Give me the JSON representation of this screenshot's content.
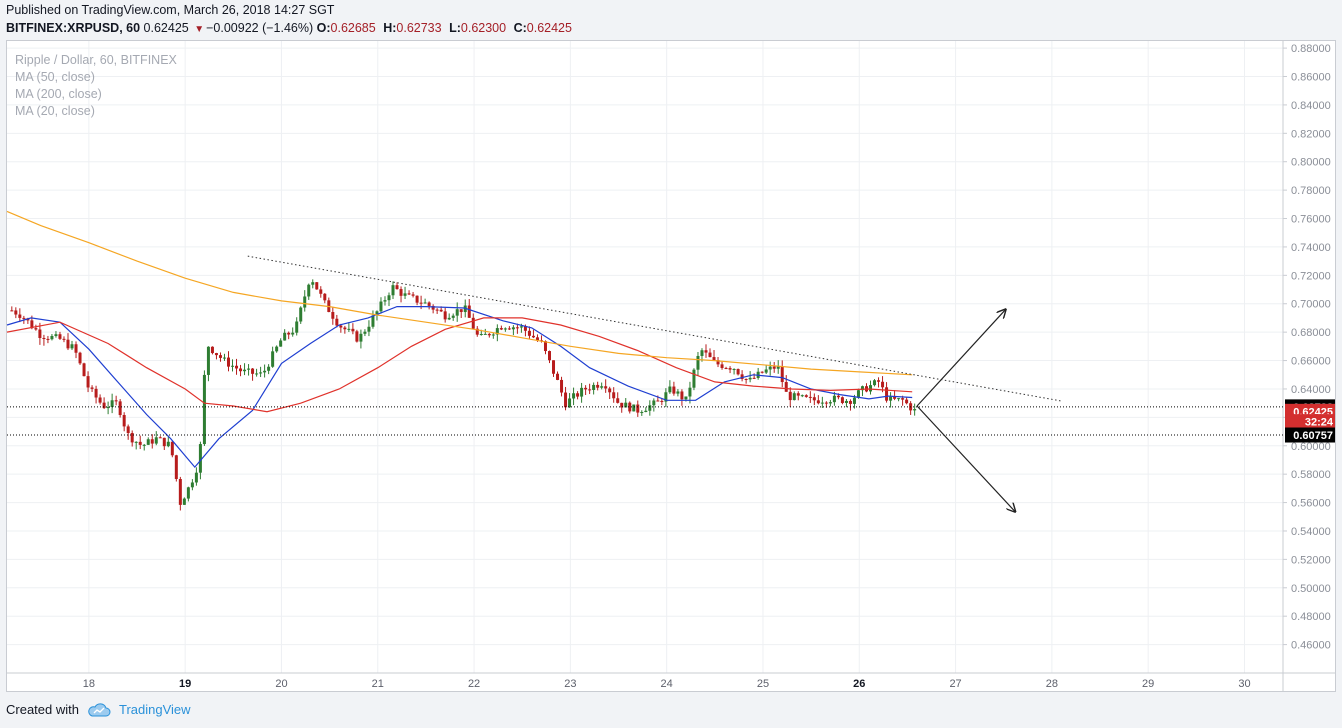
{
  "header": {
    "published": "Published on TradingView.com, March 26, 2018 14:27 SGT",
    "symbol": "BITFINEX:XRPUSD, 60",
    "last": "0.62425",
    "change": "−0.00922 (−1.46%)",
    "o_label": "O:",
    "o_value": "0.62685",
    "h_label": "H:",
    "h_value": "0.62733",
    "l_label": "L:",
    "l_value": "0.62300",
    "c_label": "C:",
    "c_value": "0.62425"
  },
  "legend": {
    "title": "Ripple / Dollar, 60, BITFINEX",
    "ma50": "MA (50, close)",
    "ma200": "MA (200, close)",
    "ma20": "MA (20, close)"
  },
  "footer": {
    "created": "Created with",
    "brand": "TradingView"
  },
  "colors": {
    "up": "#2e7d32",
    "down": "#b71c1c",
    "ma20": "#1f3fd1",
    "ma50": "#e0322b",
    "ma200": "#f5a623",
    "grid": "#eef0f3",
    "badge_black": "#000000",
    "badge_red": "#d32f2f"
  },
  "chart_data": {
    "type": "candlestick",
    "x_unit": "days (March 2018)",
    "xlim": [
      17.15,
      30.4
    ],
    "ylim": [
      0.44,
      0.885
    ],
    "y_ticks": [
      0.46,
      0.48,
      0.5,
      0.52,
      0.54,
      0.56,
      0.58,
      0.6,
      0.62,
      0.64,
      0.66,
      0.68,
      0.7,
      0.72,
      0.74,
      0.76,
      0.78,
      0.8,
      0.82,
      0.84,
      0.86,
      0.88
    ],
    "x_ticks": [
      {
        "x": 18,
        "label": "18",
        "bold": false
      },
      {
        "x": 19,
        "label": "19",
        "bold": true
      },
      {
        "x": 20,
        "label": "20",
        "bold": false
      },
      {
        "x": 21,
        "label": "21",
        "bold": false
      },
      {
        "x": 22,
        "label": "22",
        "bold": false
      },
      {
        "x": 23,
        "label": "23",
        "bold": false
      },
      {
        "x": 24,
        "label": "24",
        "bold": false
      },
      {
        "x": 25,
        "label": "25",
        "bold": false
      },
      {
        "x": 26,
        "label": "26",
        "bold": true
      },
      {
        "x": 27,
        "label": "27",
        "bold": false
      },
      {
        "x": 28,
        "label": "28",
        "bold": false
      },
      {
        "x": 29,
        "label": "29",
        "bold": false
      },
      {
        "x": 30,
        "label": "30",
        "bold": false
      }
    ],
    "price_path": [
      [
        17.15,
        0.697
      ],
      [
        17.3,
        0.692
      ],
      [
        17.5,
        0.678
      ],
      [
        17.7,
        0.675
      ],
      [
        17.85,
        0.668
      ],
      [
        18.0,
        0.64
      ],
      [
        18.15,
        0.628
      ],
      [
        18.3,
        0.63
      ],
      [
        18.4,
        0.608
      ],
      [
        18.55,
        0.6
      ],
      [
        18.7,
        0.605
      ],
      [
        18.85,
        0.6
      ],
      [
        18.95,
        0.56
      ],
      [
        19.05,
        0.572
      ],
      [
        19.15,
        0.59
      ],
      [
        19.22,
        0.672
      ],
      [
        19.4,
        0.66
      ],
      [
        19.6,
        0.652
      ],
      [
        19.8,
        0.65
      ],
      [
        20.0,
        0.675
      ],
      [
        20.15,
        0.683
      ],
      [
        20.3,
        0.72
      ],
      [
        20.45,
        0.7
      ],
      [
        20.6,
        0.685
      ],
      [
        20.8,
        0.675
      ],
      [
        21.0,
        0.695
      ],
      [
        21.15,
        0.712
      ],
      [
        21.3,
        0.705
      ],
      [
        21.5,
        0.7
      ],
      [
        21.7,
        0.692
      ],
      [
        21.9,
        0.697
      ],
      [
        22.05,
        0.675
      ],
      [
        22.3,
        0.685
      ],
      [
        22.5,
        0.683
      ],
      [
        22.7,
        0.672
      ],
      [
        22.85,
        0.648
      ],
      [
        22.95,
        0.63
      ],
      [
        23.15,
        0.64
      ],
      [
        23.35,
        0.645
      ],
      [
        23.5,
        0.63
      ],
      [
        23.7,
        0.625
      ],
      [
        23.9,
        0.63
      ],
      [
        24.05,
        0.64
      ],
      [
        24.2,
        0.632
      ],
      [
        24.35,
        0.668
      ],
      [
        24.5,
        0.658
      ],
      [
        24.7,
        0.655
      ],
      [
        24.85,
        0.645
      ],
      [
        25.0,
        0.652
      ],
      [
        25.15,
        0.656
      ],
      [
        25.25,
        0.635
      ],
      [
        25.5,
        0.632
      ],
      [
        25.7,
        0.633
      ],
      [
        25.9,
        0.632
      ],
      [
        26.05,
        0.64
      ],
      [
        26.2,
        0.645
      ],
      [
        26.3,
        0.632
      ],
      [
        26.45,
        0.632
      ],
      [
        26.58,
        0.6243
      ]
    ],
    "series": [
      {
        "name": "MA (20, close)",
        "color": "#1f3fd1",
        "points": [
          [
            17.15,
            0.685
          ],
          [
            17.4,
            0.69
          ],
          [
            17.7,
            0.687
          ],
          [
            18.0,
            0.668
          ],
          [
            18.3,
            0.645
          ],
          [
            18.6,
            0.622
          ],
          [
            18.85,
            0.605
          ],
          [
            19.1,
            0.585
          ],
          [
            19.35,
            0.605
          ],
          [
            19.7,
            0.625
          ],
          [
            20.0,
            0.658
          ],
          [
            20.3,
            0.672
          ],
          [
            20.6,
            0.685
          ],
          [
            20.9,
            0.69
          ],
          [
            21.2,
            0.698
          ],
          [
            21.5,
            0.698
          ],
          [
            21.9,
            0.697
          ],
          [
            22.3,
            0.688
          ],
          [
            22.6,
            0.683
          ],
          [
            22.9,
            0.67
          ],
          [
            23.2,
            0.655
          ],
          [
            23.6,
            0.642
          ],
          [
            24.0,
            0.632
          ],
          [
            24.3,
            0.632
          ],
          [
            24.6,
            0.645
          ],
          [
            24.9,
            0.65
          ],
          [
            25.2,
            0.648
          ],
          [
            25.5,
            0.64
          ],
          [
            25.8,
            0.636
          ],
          [
            26.1,
            0.633
          ],
          [
            26.3,
            0.635
          ],
          [
            26.55,
            0.634
          ]
        ]
      },
      {
        "name": "MA (50, close)",
        "color": "#e0322b",
        "points": [
          [
            17.15,
            0.68
          ],
          [
            17.7,
            0.687
          ],
          [
            18.2,
            0.672
          ],
          [
            18.6,
            0.655
          ],
          [
            19.0,
            0.64
          ],
          [
            19.2,
            0.63
          ],
          [
            19.5,
            0.628
          ],
          [
            19.85,
            0.624
          ],
          [
            20.2,
            0.63
          ],
          [
            20.6,
            0.64
          ],
          [
            21.0,
            0.655
          ],
          [
            21.35,
            0.67
          ],
          [
            21.7,
            0.682
          ],
          [
            22.1,
            0.69
          ],
          [
            22.5,
            0.69
          ],
          [
            22.9,
            0.685
          ],
          [
            23.3,
            0.677
          ],
          [
            23.7,
            0.667
          ],
          [
            24.1,
            0.655
          ],
          [
            24.5,
            0.645
          ],
          [
            24.9,
            0.642
          ],
          [
            25.3,
            0.64
          ],
          [
            25.7,
            0.639
          ],
          [
            26.1,
            0.64
          ],
          [
            26.55,
            0.638
          ]
        ]
      },
      {
        "name": "MA (200, close)",
        "color": "#f5a623",
        "points": [
          [
            17.15,
            0.765
          ],
          [
            17.5,
            0.755
          ],
          [
            18.0,
            0.743
          ],
          [
            18.5,
            0.73
          ],
          [
            19.0,
            0.718
          ],
          [
            19.5,
            0.708
          ],
          [
            20.0,
            0.702
          ],
          [
            20.5,
            0.698
          ],
          [
            21.0,
            0.692
          ],
          [
            21.5,
            0.687
          ],
          [
            22.0,
            0.682
          ],
          [
            22.5,
            0.676
          ],
          [
            23.0,
            0.67
          ],
          [
            23.5,
            0.665
          ],
          [
            24.0,
            0.662
          ],
          [
            24.5,
            0.66
          ],
          [
            25.0,
            0.657
          ],
          [
            25.5,
            0.654
          ],
          [
            26.0,
            0.652
          ],
          [
            26.55,
            0.65
          ]
        ]
      }
    ],
    "annotations": {
      "trendline": [
        [
          19.65,
          0.7335
        ],
        [
          28.1,
          0.6315
        ]
      ],
      "arrow_up": [
        [
          26.6,
          0.628
        ],
        [
          27.52,
          0.696
        ]
      ],
      "arrow_down": [
        [
          26.6,
          0.628
        ],
        [
          27.62,
          0.5535
        ]
      ],
      "hlines": [
        0.62738,
        0.60757
      ]
    },
    "price_labels": [
      {
        "value": 0.62738,
        "text": "0.62738",
        "bg": "#000000",
        "fg": "#ffffff"
      },
      {
        "value": 0.62425,
        "text": "0.62425",
        "bg": "#d32f2f",
        "fg": "#ffffff"
      },
      {
        "value": 0.617,
        "text": "32:24",
        "bg": "#d32f2f",
        "fg": "#ffffff"
      },
      {
        "value": 0.60757,
        "text": "0.60757",
        "bg": "#000000",
        "fg": "#ffffff"
      }
    ]
  }
}
